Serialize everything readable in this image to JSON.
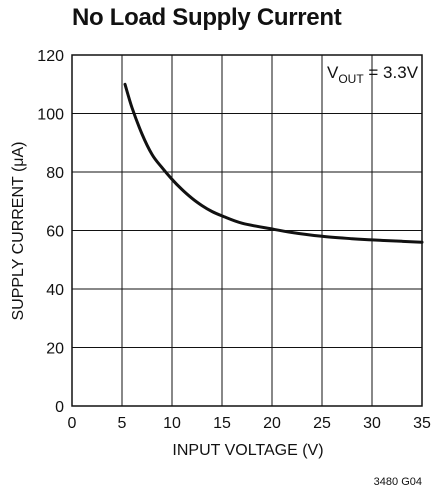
{
  "chart_data": {
    "type": "line",
    "title": "No Load Supply Current",
    "xlabel": "INPUT VOLTAGE (V)",
    "ylabel": "SUPPLY CURRENT (μA)",
    "xlim": [
      0,
      35
    ],
    "ylim": [
      0,
      120
    ],
    "x_ticks": [
      "0",
      "5",
      "10",
      "15",
      "20",
      "25",
      "30",
      "35"
    ],
    "y_ticks": [
      "0",
      "20",
      "40",
      "60",
      "80",
      "100",
      "120"
    ],
    "grid": true,
    "annotation": {
      "main": "V",
      "sub": "OUT",
      "rest": " = 3.3V"
    },
    "figure_id": "3480 G04",
    "series": [
      {
        "color": "#111111",
        "x": [
          5.3,
          6,
          7,
          8,
          9,
          10,
          11,
          12,
          13,
          14,
          15,
          17,
          20,
          22,
          25,
          28,
          30,
          33,
          35
        ],
        "y": [
          110,
          102,
          93,
          86,
          81.5,
          77.5,
          74,
          71,
          68.5,
          66.5,
          65,
          62.5,
          60.5,
          59.3,
          58,
          57.2,
          56.8,
          56.3,
          56
        ]
      }
    ]
  }
}
